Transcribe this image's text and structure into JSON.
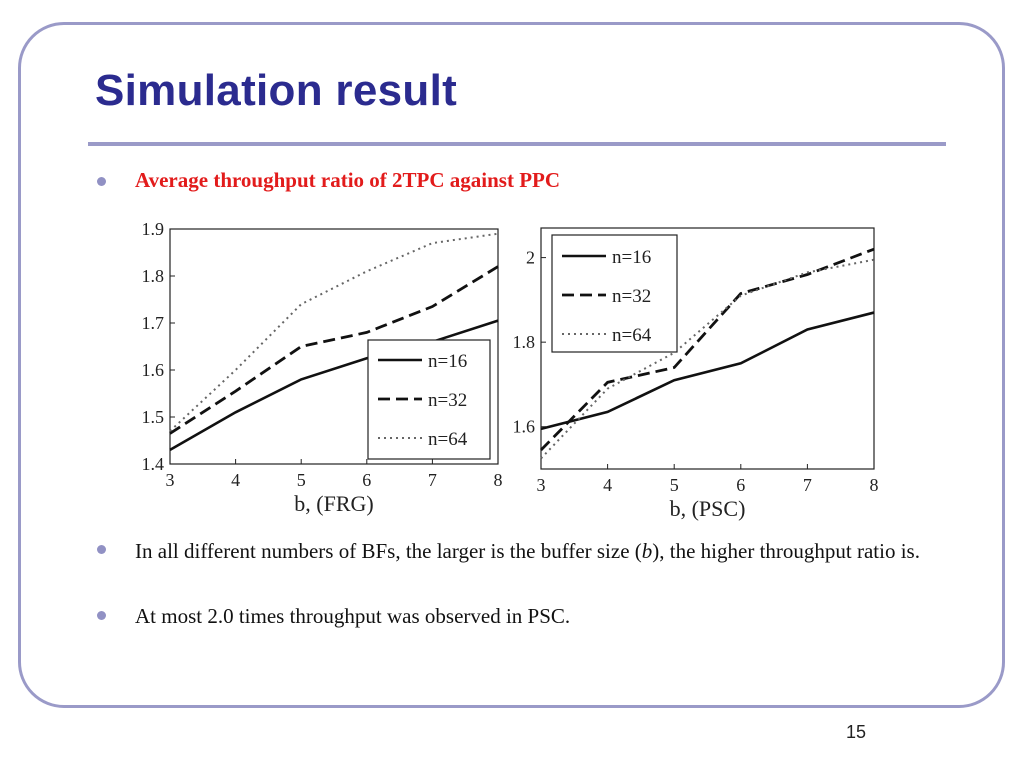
{
  "slide": {
    "title": "Simulation result",
    "subtitle": "Average throughput ratio of 2TPC against PPC",
    "bullet2_before": "In all different numbers of BFs, the larger is the buffer size (",
    "bullet2_var": "b",
    "bullet2_after": "), the higher throughput ratio is.",
    "bullet3": "At most 2.0 times throughput was observed in PSC.",
    "page_number": "15"
  },
  "chart_data": [
    {
      "type": "line",
      "xlabel": "b, (FRG)",
      "ylabel": "",
      "x": [
        3,
        4,
        5,
        6,
        7,
        8
      ],
      "xlim": [
        3,
        8
      ],
      "ylim": [
        1.4,
        1.9
      ],
      "xticks": [
        "3",
        "4",
        "5",
        "6",
        "7",
        "8"
      ],
      "yticks": [
        "1.4",
        "1.5",
        "1.6",
        "1.7",
        "1.8",
        "1.9"
      ],
      "legend_position": "bottom-right",
      "series": [
        {
          "name": "n=16",
          "style": "solid",
          "values": [
            1.43,
            1.51,
            1.58,
            1.625,
            1.66,
            1.705
          ]
        },
        {
          "name": "n=32",
          "style": "dashed",
          "values": [
            1.465,
            1.555,
            1.65,
            1.68,
            1.735,
            1.82
          ]
        },
        {
          "name": "n=64",
          "style": "dotted",
          "values": [
            1.47,
            1.6,
            1.74,
            1.81,
            1.87,
            1.89
          ]
        }
      ]
    },
    {
      "type": "line",
      "xlabel": "b, (PSC)",
      "ylabel": "",
      "x": [
        3,
        4,
        5,
        6,
        7,
        8
      ],
      "xlim": [
        3,
        8
      ],
      "ylim": [
        1.5,
        2.07
      ],
      "xticks": [
        "3",
        "4",
        "5",
        "6",
        "7",
        "8"
      ],
      "yticks": [
        "1.6",
        "1.8",
        "2"
      ],
      "ytick_values": [
        1.6,
        1.8,
        2.0
      ],
      "legend_position": "top-left",
      "series": [
        {
          "name": "n=16",
          "style": "solid",
          "values": [
            1.595,
            1.635,
            1.71,
            1.75,
            1.83,
            1.87
          ]
        },
        {
          "name": "n=32",
          "style": "dashed",
          "values": [
            1.545,
            1.705,
            1.74,
            1.915,
            1.96,
            2.02
          ]
        },
        {
          "name": "n=64",
          "style": "dotted",
          "values": [
            1.525,
            1.69,
            1.775,
            1.91,
            1.965,
            1.995
          ]
        }
      ]
    }
  ]
}
